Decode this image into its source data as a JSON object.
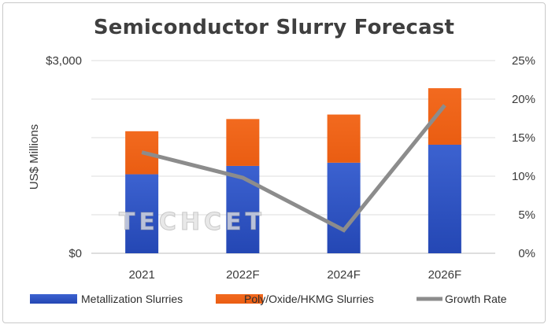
{
  "chart_data": {
    "type": "bar",
    "title": "Semiconductor Slurry Forecast",
    "ylabel": "US$ Millions",
    "categories": [
      "2021",
      "2022F",
      "2024F",
      "2026F"
    ],
    "ylim": [
      0,
      3000
    ],
    "y_ticks": [
      "$0",
      "$3,000"
    ],
    "y2lim": [
      0,
      25
    ],
    "y2_ticks": [
      "0%",
      "5%",
      "10%",
      "15%",
      "20%",
      "25%"
    ],
    "stacked": true,
    "series": [
      {
        "name": "Metallization Slurries",
        "kind": "bar",
        "axis": "left",
        "color": "#2e56c7",
        "values": [
          1230,
          1360,
          1410,
          1690
        ]
      },
      {
        "name": "Poly/Oxide/HKMG Slurries",
        "kind": "bar",
        "axis": "left",
        "color": "#f06a22",
        "values": [
          670,
          730,
          750,
          880
        ]
      },
      {
        "name": "Growth Rate",
        "kind": "line",
        "axis": "right",
        "color": "#8c8c8c",
        "values": [
          13.1,
          9.8,
          3.0,
          19.2
        ]
      }
    ],
    "watermark": "TECHCET",
    "grid": true,
    "legend_position": "bottom"
  }
}
